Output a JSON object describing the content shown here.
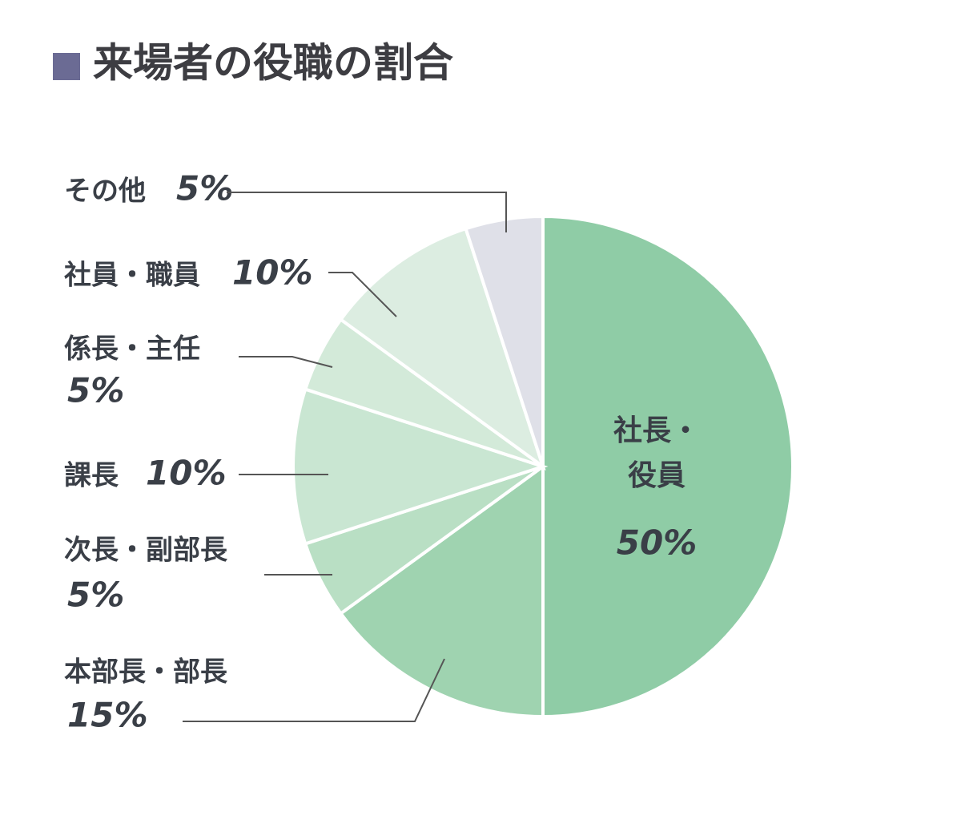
{
  "chart_data": {
    "type": "pie",
    "title": "来場者の役職の割合",
    "categories": [
      "社長・役員",
      "本部長・部長",
      "次長・副部長",
      "課長",
      "係長・主任",
      "社員・職員",
      "その他"
    ],
    "values": [
      50,
      15,
      5,
      10,
      5,
      10,
      5
    ],
    "value_labels": [
      "50%",
      "15%",
      "5%",
      "10%",
      "5%",
      "10%",
      "5%"
    ],
    "colors": [
      "#8fcca6",
      "#9fd3b0",
      "#b9dfc4",
      "#c9e6d2",
      "#d3ead9",
      "#dcede1",
      "#dfe0e8"
    ]
  }
}
